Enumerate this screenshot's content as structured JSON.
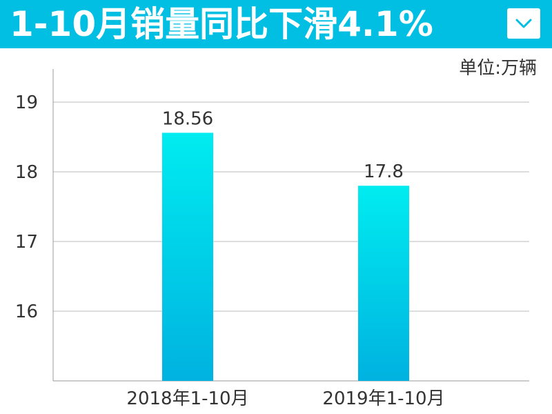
{
  "header": {
    "title": "1-10月销量同比下滑4.1%"
  },
  "unit_label": "单位:万辆",
  "colors": {
    "header_bg": "#00bfe3",
    "bar_top": "#00ecf0",
    "bar_bottom": "#00b2e0",
    "grid": "#bbbbbb",
    "text": "#333333"
  },
  "icons": {
    "dropdown": "chevron-down-icon"
  },
  "chart_data": {
    "type": "bar",
    "categories": [
      "2018年1-10月",
      "2019年1-10月"
    ],
    "values": [
      18.56,
      17.8
    ],
    "data_labels": [
      "18.56",
      "17.8"
    ],
    "y_ticks": [
      16,
      17,
      18,
      19
    ],
    "ylim": [
      15.0,
      19.0
    ],
    "grid": true,
    "legend": "none",
    "title": "",
    "xlabel": "",
    "ylabel": ""
  }
}
